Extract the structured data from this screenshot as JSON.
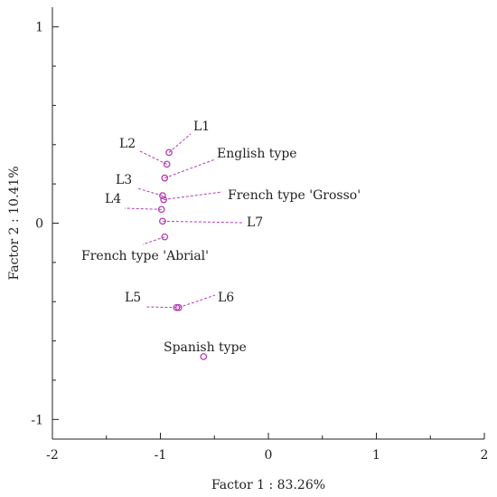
{
  "chart_data": {
    "type": "scatter",
    "title": "",
    "xlabel": "Factor 1 : 83.26%",
    "ylabel": "Factor 2 : 10.41%",
    "xlim": [
      -2,
      2
    ],
    "ylim": [
      -1.1,
      1.1
    ],
    "xticks": [
      -2,
      -1,
      0,
      1,
      2
    ],
    "yticks": [
      -1,
      0,
      1
    ],
    "xtick_labels": [
      "-2",
      "-1",
      "0",
      "1",
      "2"
    ],
    "ytick_labels": [
      "-1",
      "0",
      "1"
    ],
    "grid": false,
    "marker_color": "#b43cb4",
    "points": [
      {
        "label": "L1",
        "x": -0.92,
        "y": 0.36
      },
      {
        "label": "L2",
        "x": -0.94,
        "y": 0.3
      },
      {
        "label": "English type",
        "x": -0.96,
        "y": 0.23
      },
      {
        "label": "L3",
        "x": -0.98,
        "y": 0.14
      },
      {
        "label": "French type 'Grosso'",
        "x": -0.97,
        "y": 0.12
      },
      {
        "label": "L4",
        "x": -0.99,
        "y": 0.07
      },
      {
        "label": "L7",
        "x": -0.98,
        "y": 0.01
      },
      {
        "label": "French type 'Abrial'",
        "x": -0.96,
        "y": -0.07
      },
      {
        "label": "L5",
        "x": -0.85,
        "y": -0.43
      },
      {
        "label": "L6",
        "x": -0.83,
        "y": -0.43
      },
      {
        "label": "Spanish type",
        "x": -0.6,
        "y": -0.68
      }
    ]
  }
}
